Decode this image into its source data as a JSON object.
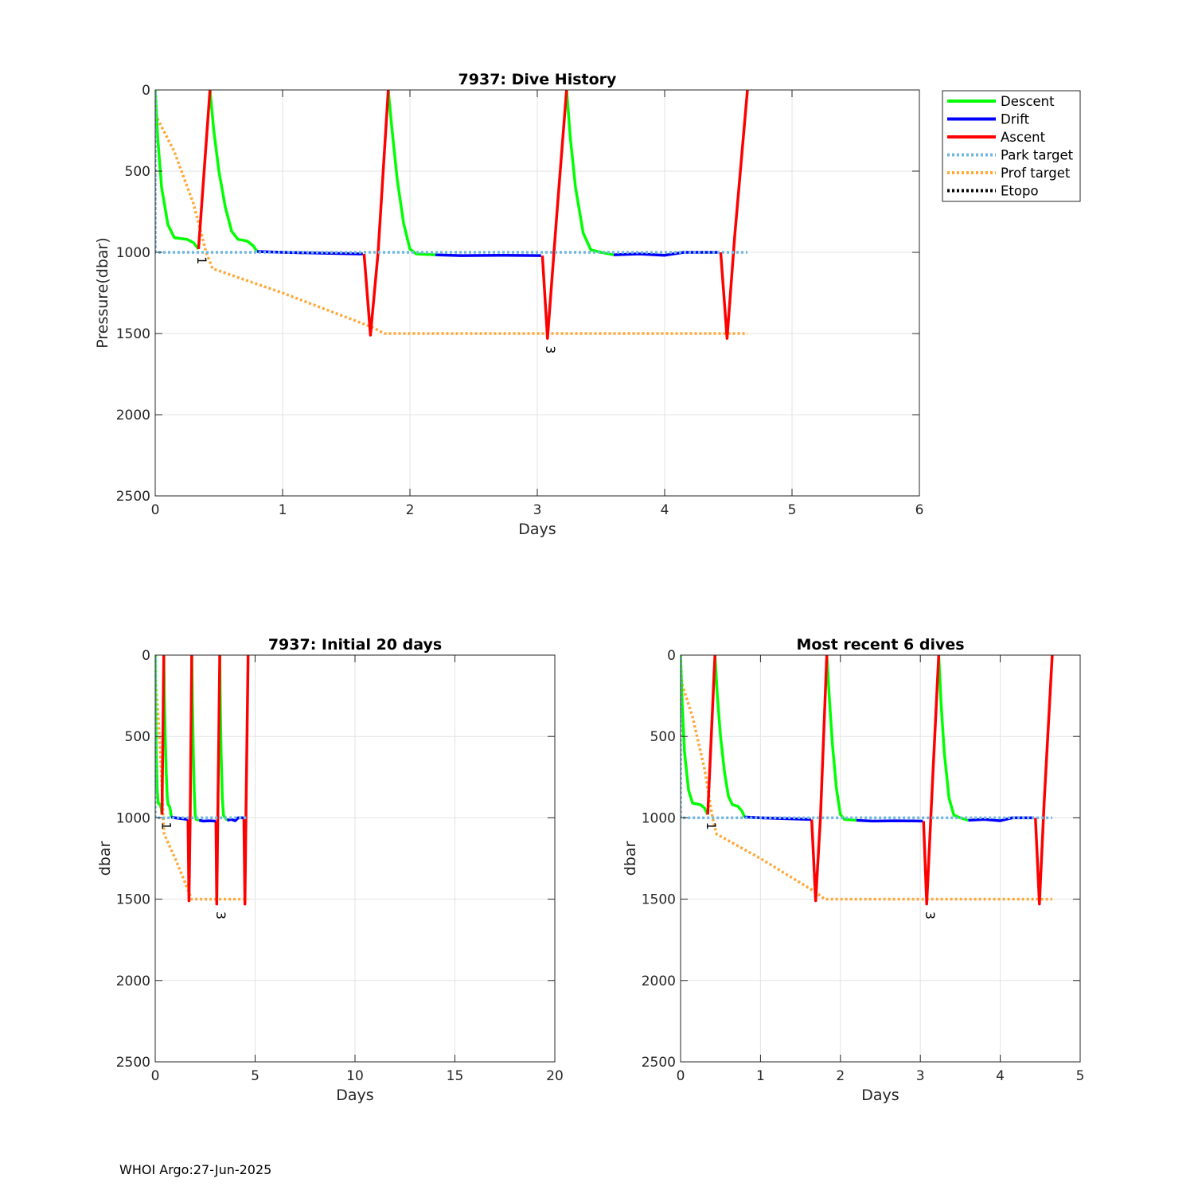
{
  "footer": "WHOI Argo:27-Jun-2025",
  "colors": {
    "descent": "#00ff00",
    "drift": "#0000ff",
    "ascent": "#ff0000",
    "park_target": "#70b8e0",
    "prof_target": "#ffa838",
    "etopo": "#000000"
  },
  "chart_data": [
    {
      "id": "main",
      "type": "line",
      "title": "7937: Dive History",
      "xlabel": "Days",
      "ylabel": "Pressure(dbar)",
      "xlim": [
        0,
        6
      ],
      "ylim": [
        0,
        2500
      ],
      "y_reversed": true,
      "grid": true,
      "xticks": [
        0,
        1,
        2,
        3,
        4,
        5,
        6
      ],
      "yticks": [
        0,
        500,
        1000,
        1500,
        2000,
        2500
      ],
      "legend": {
        "placement": "outside-top-right",
        "entries": [
          "Descent",
          "Drift",
          "Ascent",
          "Park target",
          "Prof target",
          "Etopo"
        ]
      },
      "profile_labels": [
        {
          "text": "1",
          "x": 0.33,
          "y": 1050
        },
        {
          "text": "3",
          "x": 3.07,
          "y": 1600
        }
      ]
    },
    {
      "id": "initial",
      "type": "line",
      "title": "7937: Initial 20 days",
      "xlabel": "Days",
      "ylabel": "dbar",
      "xlim": [
        0,
        20
      ],
      "ylim": [
        0,
        2500
      ],
      "y_reversed": true,
      "grid": true,
      "xticks": [
        0,
        5,
        10,
        15,
        20
      ],
      "yticks": [
        0,
        500,
        1000,
        1500,
        2000,
        2500
      ],
      "profile_labels": [
        {
          "text": "1",
          "x": 0.33,
          "y": 1050
        },
        {
          "text": "3",
          "x": 3.07,
          "y": 1600
        }
      ]
    },
    {
      "id": "recent",
      "type": "line",
      "title": "Most recent 6 dives",
      "xlabel": "Days",
      "ylabel": "dbar",
      "xlim": [
        0,
        5
      ],
      "ylim": [
        0,
        2500
      ],
      "y_reversed": true,
      "grid": true,
      "xticks": [
        0,
        1,
        2,
        3,
        4,
        5
      ],
      "yticks": [
        0,
        500,
        1000,
        1500,
        2000,
        2500
      ],
      "profile_labels": [
        {
          "text": "1",
          "x": 0.33,
          "y": 1050
        },
        {
          "text": "3",
          "x": 3.07,
          "y": 1600
        }
      ]
    }
  ],
  "series_data": {
    "descent": [
      [
        [
          0.0,
          0
        ],
        [
          0.02,
          300
        ],
        [
          0.05,
          600
        ],
        [
          0.1,
          830
        ],
        [
          0.15,
          910
        ],
        [
          0.25,
          920
        ],
        [
          0.3,
          940
        ],
        [
          0.34,
          980
        ]
      ],
      [
        [
          0.43,
          0
        ],
        [
          0.46,
          250
        ],
        [
          0.5,
          500
        ],
        [
          0.55,
          720
        ],
        [
          0.6,
          870
        ],
        [
          0.65,
          920
        ],
        [
          0.72,
          930
        ],
        [
          0.77,
          960
        ],
        [
          0.8,
          995
        ]
      ],
      [
        [
          1.83,
          0
        ],
        [
          1.86,
          250
        ],
        [
          1.9,
          550
        ],
        [
          1.95,
          820
        ],
        [
          2.0,
          980
        ],
        [
          2.05,
          1010
        ],
        [
          2.2,
          1015
        ]
      ],
      [
        [
          3.23,
          0
        ],
        [
          3.26,
          300
        ],
        [
          3.3,
          600
        ],
        [
          3.36,
          880
        ],
        [
          3.42,
          985
        ],
        [
          3.5,
          1000
        ],
        [
          3.6,
          1015
        ]
      ]
    ],
    "drift": [
      [
        [
          0.8,
          995
        ],
        [
          1.0,
          1000
        ],
        [
          1.3,
          1005
        ],
        [
          1.6,
          1010
        ],
        [
          1.63,
          1010
        ]
      ],
      [
        [
          2.2,
          1015
        ],
        [
          2.4,
          1020
        ],
        [
          2.7,
          1018
        ],
        [
          3.03,
          1020
        ]
      ],
      [
        [
          3.6,
          1015
        ],
        [
          3.8,
          1010
        ],
        [
          4.0,
          1018
        ],
        [
          4.15,
          1000
        ],
        [
          4.3,
          1000
        ],
        [
          4.42,
          1000
        ]
      ]
    ],
    "ascent": [
      [
        [
          0.34,
          980
        ],
        [
          0.43,
          0
        ]
      ],
      [
        [
          1.64,
          1010
        ],
        [
          1.69,
          1510
        ],
        [
          1.75,
          1000
        ],
        [
          1.83,
          0
        ]
      ],
      [
        [
          3.04,
          1020
        ],
        [
          3.08,
          1530
        ],
        [
          3.15,
          800
        ],
        [
          3.23,
          0
        ]
      ],
      [
        [
          4.44,
          1000
        ],
        [
          4.49,
          1530
        ],
        [
          4.55,
          900
        ],
        [
          4.65,
          0
        ]
      ]
    ],
    "park_target": [
      [
        0.0,
        1000
      ],
      [
        0.0,
        10
      ],
      [
        0.0,
        1000
      ],
      [
        4.65,
        1000
      ]
    ],
    "prof_target": [
      [
        0.0,
        150
      ],
      [
        0.15,
        380
      ],
      [
        0.3,
        700
      ],
      [
        0.4,
        1000
      ],
      [
        0.45,
        1100
      ],
      [
        1.0,
        1250
      ],
      [
        1.7,
        1460
      ],
      [
        1.8,
        1500
      ],
      [
        4.65,
        1500
      ]
    ]
  }
}
